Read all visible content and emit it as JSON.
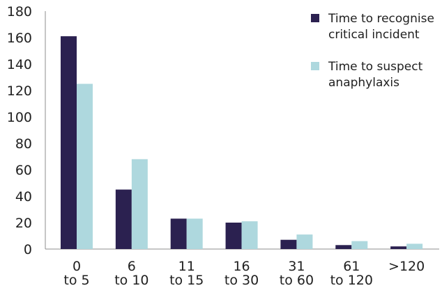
{
  "chart_data": {
    "type": "bar",
    "categories": [
      [
        "0",
        "to 5"
      ],
      [
        "6",
        "to 10"
      ],
      [
        "11",
        "to 15"
      ],
      [
        "16",
        "to 30"
      ],
      [
        "31",
        "to 60"
      ],
      [
        "61",
        "to 120"
      ],
      [
        ">120"
      ]
    ],
    "series": [
      {
        "name": [
          "Time to recognise",
          "critical incident"
        ],
        "color": "#2b2150",
        "values": [
          161,
          45,
          23,
          20,
          7,
          3,
          2
        ]
      },
      {
        "name": [
          "Time to suspect",
          "anaphylaxis"
        ],
        "color": "#aed8de",
        "values": [
          125,
          68,
          23,
          21,
          11,
          6,
          4
        ]
      }
    ],
    "title": "",
    "xlabel": "",
    "ylabel": "",
    "ylim": [
      0,
      180
    ],
    "yticks": [
      0,
      20,
      40,
      60,
      80,
      100,
      120,
      140,
      160,
      180
    ],
    "grid": false,
    "legend_position": "top-right"
  }
}
